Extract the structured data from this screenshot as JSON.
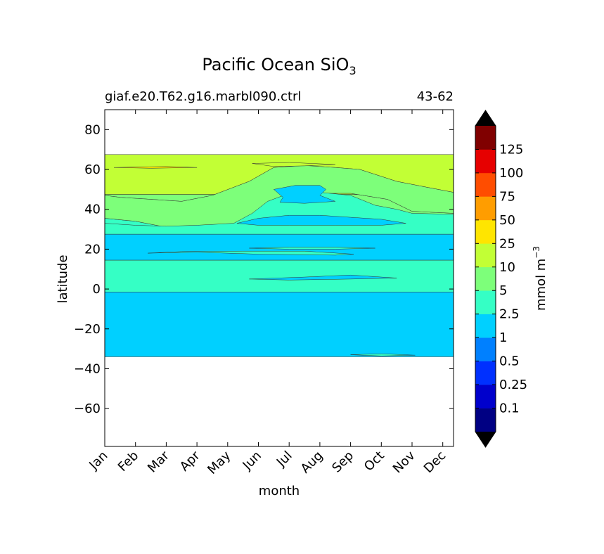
{
  "chart_data": {
    "type": "heatmap",
    "title": "Pacific Ocean SiO",
    "title_subscript": "3",
    "subtitle_left": "giaf.e20.T62.g16.marbl090.ctrl",
    "subtitle_right": "43-62",
    "xlabel": "month",
    "ylabel": "latitude",
    "x": [
      "Jan",
      "Feb",
      "Mar",
      "Apr",
      "May",
      "Jun",
      "Jul",
      "Aug",
      "Sep",
      "Oct",
      "Nov",
      "Dec"
    ],
    "xlim": [
      0,
      11.35
    ],
    "ylim": [
      -79,
      90
    ],
    "yticks": [
      -60,
      -40,
      -20,
      0,
      20,
      40,
      60,
      80
    ],
    "colorbar": {
      "label": "mmol m",
      "label_superscript": "−3",
      "levels": [
        0,
        0.1,
        0.25,
        0.5,
        1,
        2.5,
        5,
        10,
        25,
        50,
        75,
        100,
        125,
        150
      ],
      "tick_labels": [
        "0.1",
        "0.25",
        "0.5",
        "1",
        "2.5",
        "5",
        "10",
        "25",
        "50",
        "75",
        "100",
        "125"
      ],
      "colors": [
        "#000083",
        "#0000cc",
        "#0030ff",
        "#0080ff",
        "#00d0ff",
        "#35ffc5",
        "#7dff7a",
        "#c2ff35",
        "#ffe500",
        "#ff9d00",
        "#ff4d00",
        "#e60000",
        "#800000"
      ],
      "extend_under_color": "#000000",
      "extend_over_color": "#000000"
    },
    "regions": [
      {
        "band": "1-2.5",
        "points": [
          [
            0,
            -34
          ],
          [
            11.35,
            -34
          ],
          [
            11.35,
            -1.5
          ],
          [
            0,
            -1.5
          ]
        ]
      },
      {
        "band": "2.5-5",
        "points": [
          [
            0,
            -1.5
          ],
          [
            11.35,
            -1.5
          ],
          [
            11.35,
            14.5
          ],
          [
            0,
            14.5
          ]
        ]
      },
      {
        "band": "1-2.5",
        "points": [
          [
            0,
            14.5
          ],
          [
            11.35,
            14.5
          ],
          [
            11.35,
            27.5
          ],
          [
            0,
            27.5
          ]
        ]
      },
      {
        "band": "2.5-5",
        "points": [
          [
            0,
            27.5
          ],
          [
            11.35,
            27.5
          ],
          [
            11.35,
            37
          ],
          [
            0,
            37
          ]
        ]
      },
      {
        "band": "5-10",
        "points": [
          [
            0,
            37
          ],
          [
            11.35,
            37
          ],
          [
            11.35,
            47.5
          ],
          [
            0,
            47.5
          ]
        ]
      },
      {
        "band": "10-25",
        "points": [
          [
            0,
            47.5
          ],
          [
            11.35,
            47.5
          ],
          [
            11.35,
            67.5
          ],
          [
            0,
            67.5
          ]
        ]
      },
      {
        "band": "10-25",
        "points": [
          [
            0,
            35.5
          ],
          [
            1,
            34
          ],
          [
            2,
            31
          ],
          [
            3,
            30
          ],
          [
            4,
            30
          ],
          [
            4.5,
            31
          ],
          [
            5.3,
            38
          ],
          [
            5.7,
            46
          ],
          [
            6.5,
            48
          ],
          [
            8,
            48
          ],
          [
            9.2,
            45
          ],
          [
            10,
            39
          ],
          [
            11.35,
            38
          ],
          [
            11.35,
            48.5
          ],
          [
            10.5,
            51
          ],
          [
            9.5,
            54
          ],
          [
            8.3,
            60
          ],
          [
            7.5,
            61
          ],
          [
            6.5,
            62
          ],
          [
            5.5,
            61
          ],
          [
            4.7,
            54
          ],
          [
            3.5,
            47
          ],
          [
            2.5,
            44
          ],
          [
            1.5,
            45
          ],
          [
            0.5,
            46
          ],
          [
            0,
            47
          ]
        ]
      },
      {
        "band": "5-10",
        "points": [
          [
            0,
            35.5
          ],
          [
            1,
            34
          ],
          [
            2,
            31
          ],
          [
            3,
            30
          ],
          [
            4,
            30
          ],
          [
            4.5,
            31
          ],
          [
            5.3,
            38
          ],
          [
            5.7,
            46
          ],
          [
            6.5,
            48
          ],
          [
            8,
            48
          ],
          [
            9.2,
            45
          ],
          [
            10,
            39
          ],
          [
            11.35,
            38
          ],
          [
            11.35,
            48.5
          ],
          [
            10.5,
            51
          ],
          [
            9.5,
            54
          ],
          [
            8.3,
            60
          ],
          [
            7.5,
            61
          ],
          [
            6.5,
            62
          ],
          [
            5.5,
            61
          ],
          [
            4.7,
            54
          ],
          [
            3.5,
            47
          ],
          [
            2.5,
            44
          ],
          [
            1.5,
            45
          ],
          [
            0.5,
            46
          ],
          [
            0,
            47
          ]
        ]
      },
      {
        "band": "2.5-5",
        "points": [
          [
            0,
            27.5
          ],
          [
            11.35,
            27.5
          ],
          [
            11.35,
            37.5
          ],
          [
            10,
            38
          ],
          [
            9.5,
            40
          ],
          [
            8.8,
            42
          ],
          [
            8,
            47
          ],
          [
            7,
            48.5
          ],
          [
            6,
            48
          ],
          [
            5.3,
            44
          ],
          [
            4.8,
            38
          ],
          [
            4.2,
            33
          ],
          [
            3,
            32
          ],
          [
            2,
            31.5
          ],
          [
            1,
            32
          ],
          [
            0,
            33
          ]
        ]
      },
      {
        "band": "1-2.5",
        "points": [
          [
            4.3,
            33
          ],
          [
            5,
            35.5
          ],
          [
            6,
            37
          ],
          [
            7,
            37
          ],
          [
            8,
            36
          ],
          [
            9,
            35
          ],
          [
            9.8,
            33
          ],
          [
            9,
            32
          ],
          [
            7.5,
            32
          ],
          [
            6,
            32
          ],
          [
            5,
            32
          ]
        ]
      },
      {
        "band": "1-2.5",
        "points": [
          [
            5.5,
            50
          ],
          [
            6.2,
            52
          ],
          [
            7,
            52
          ],
          [
            7.2,
            50
          ],
          [
            7,
            47
          ],
          [
            7.5,
            44
          ],
          [
            6.5,
            43
          ],
          [
            5.7,
            43.5
          ],
          [
            5.8,
            46
          ]
        ]
      },
      {
        "band": "2.5-5",
        "points": [
          [
            4.7,
            20.5
          ],
          [
            6,
            21
          ],
          [
            7.5,
            21
          ],
          [
            8.8,
            20.5
          ],
          [
            7.5,
            20
          ],
          [
            6,
            20
          ]
        ]
      },
      {
        "band": "2.5-5",
        "points": [
          [
            1.4,
            18
          ],
          [
            3,
            18.5
          ],
          [
            5,
            17.5
          ],
          [
            7.5,
            17
          ],
          [
            8.1,
            17.5
          ],
          [
            6.5,
            19
          ],
          [
            4.5,
            19
          ],
          [
            2.5,
            18.8
          ]
        ]
      },
      {
        "band": "1-2.5",
        "points": [
          [
            4.7,
            5
          ],
          [
            6.5,
            6
          ],
          [
            8,
            7
          ],
          [
            9.5,
            5.5
          ],
          [
            8,
            5
          ],
          [
            6,
            4.5
          ]
        ]
      },
      {
        "band": "10-25",
        "points": [
          [
            4.8,
            63
          ],
          [
            6,
            63.5
          ],
          [
            7.5,
            62.5
          ],
          [
            6.5,
            61.8
          ],
          [
            5.5,
            61.5
          ]
        ]
      },
      {
        "band": "25-50",
        "points": [
          [
            0.3,
            61
          ],
          [
            2,
            61.5
          ],
          [
            3,
            61
          ],
          [
            1.5,
            60.6
          ]
        ]
      },
      {
        "band": "2.5-5",
        "points": [
          [
            8,
            -33
          ],
          [
            9,
            -32.5
          ],
          [
            10.1,
            -33.2
          ],
          [
            9,
            -33.6
          ]
        ]
      }
    ]
  }
}
